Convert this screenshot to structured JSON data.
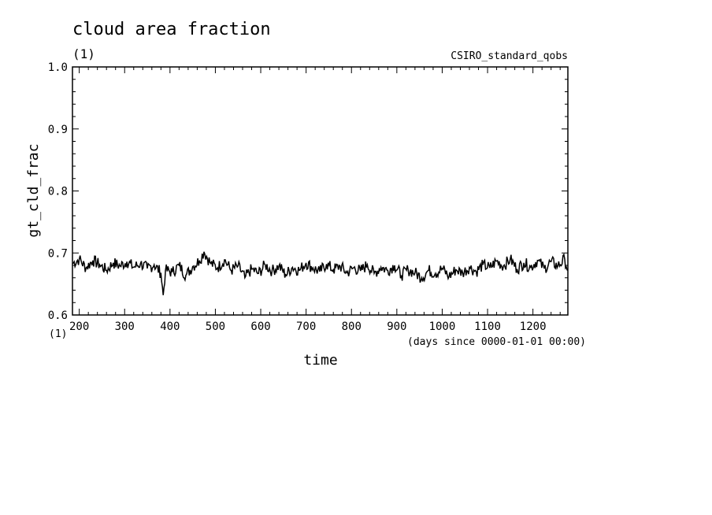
{
  "chart_data": {
    "type": "line",
    "title": "cloud area fraction",
    "title_units": "(1)",
    "dataset": "CSIRO_standard_qobs",
    "xlabel": "time",
    "xunits": "(days since 0000-01-01 00:00)",
    "ylabel": "gt_cld_frac",
    "yunits": "(1)",
    "xlim": [
      185,
      1277
    ],
    "ylim": [
      0.6,
      1.0
    ],
    "x_ticks": [
      200,
      300,
      400,
      500,
      600,
      700,
      800,
      900,
      1000,
      1100,
      1200
    ],
    "y_ticks": [
      0.6,
      0.7,
      0.8,
      0.9,
      1.0
    ],
    "y_tick_labels": [
      "0.6",
      "0.7",
      "0.8",
      "0.9",
      "1.0"
    ],
    "grid": false,
    "series": [
      {
        "x": [
          185,
          200,
          215,
          230,
          245,
          260,
          275,
          290,
          305,
          320,
          335,
          350,
          365,
          380,
          385,
          390,
          405,
          420,
          435,
          450,
          465,
          475,
          490,
          505,
          520,
          535,
          550,
          565,
          580,
          595,
          610,
          625,
          640,
          655,
          670,
          685,
          700,
          715,
          730,
          745,
          760,
          775,
          790,
          805,
          820,
          835,
          850,
          865,
          880,
          895,
          910,
          925,
          940,
          955,
          970,
          985,
          1000,
          1015,
          1030,
          1045,
          1060,
          1075,
          1090,
          1105,
          1120,
          1135,
          1150,
          1165,
          1180,
          1195,
          1210,
          1225,
          1240,
          1255,
          1270,
          1277
        ],
        "y": [
          0.683,
          0.69,
          0.676,
          0.688,
          0.681,
          0.672,
          0.684,
          0.679,
          0.686,
          0.677,
          0.683,
          0.675,
          0.681,
          0.668,
          0.632,
          0.672,
          0.669,
          0.68,
          0.664,
          0.678,
          0.688,
          0.702,
          0.683,
          0.676,
          0.689,
          0.672,
          0.679,
          0.66,
          0.674,
          0.667,
          0.681,
          0.671,
          0.679,
          0.665,
          0.677,
          0.672,
          0.684,
          0.676,
          0.67,
          0.682,
          0.673,
          0.679,
          0.668,
          0.676,
          0.671,
          0.681,
          0.667,
          0.677,
          0.672,
          0.68,
          0.664,
          0.673,
          0.668,
          0.66,
          0.672,
          0.667,
          0.675,
          0.662,
          0.673,
          0.668,
          0.677,
          0.67,
          0.681,
          0.676,
          0.687,
          0.679,
          0.69,
          0.674,
          0.684,
          0.677,
          0.688,
          0.675,
          0.686,
          0.679,
          0.69,
          0.672
        ]
      }
    ]
  }
}
